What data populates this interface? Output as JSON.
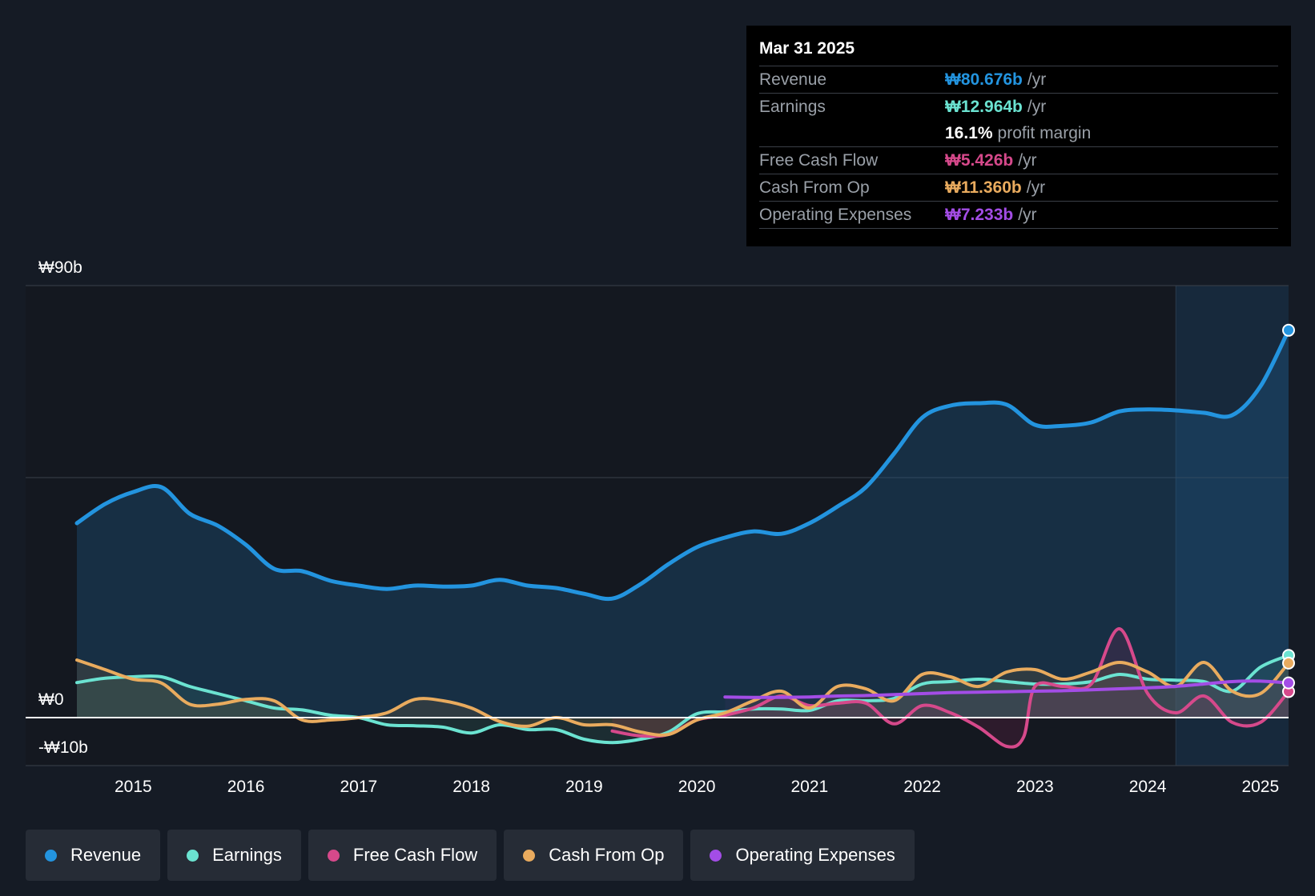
{
  "tooltip": {
    "date": "Mar 31 2025",
    "rows": [
      {
        "label": "Revenue",
        "value": "₩80.676b",
        "unit": "/yr",
        "color": "#2394df"
      },
      {
        "label": "Earnings",
        "value": "₩12.964b",
        "unit": "/yr",
        "color": "#6be3d1"
      },
      {
        "label": "",
        "value": "16.1%",
        "unit": "profit margin",
        "color": "#ffffff"
      },
      {
        "label": "Free Cash Flow",
        "value": "₩5.426b",
        "unit": "/yr",
        "color": "#d6498b"
      },
      {
        "label": "Cash From Op",
        "value": "₩11.360b",
        "unit": "/yr",
        "color": "#e9ab5e"
      },
      {
        "label": "Operating Expenses",
        "value": "₩7.233b",
        "unit": "/yr",
        "color": "#a34de6"
      }
    ]
  },
  "legend": [
    {
      "label": "Revenue",
      "color": "#2394df"
    },
    {
      "label": "Earnings",
      "color": "#6be3d1"
    },
    {
      "label": "Free Cash Flow",
      "color": "#d6498b"
    },
    {
      "label": "Cash From Op",
      "color": "#e9ab5e"
    },
    {
      "label": "Operating Expenses",
      "color": "#a34de6"
    }
  ],
  "chart_data": {
    "type": "area",
    "title": "",
    "xlabel": "",
    "ylabel": "",
    "currency": "₩",
    "ylim": [
      -10,
      90
    ],
    "xlim": [
      2014.5,
      2025.25
    ],
    "y_tick_labels": [
      {
        "value": 90,
        "label": "₩90b"
      },
      {
        "value": 0,
        "label": "₩0"
      },
      {
        "value": -10,
        "label": "-₩10b"
      }
    ],
    "gridlines": [
      90,
      50
    ],
    "x_tick_labels": [
      "2015",
      "2016",
      "2017",
      "2018",
      "2019",
      "2020",
      "2021",
      "2022",
      "2023",
      "2024",
      "2025"
    ],
    "x_tick_values": [
      2015,
      2016,
      2017,
      2018,
      2019,
      2020,
      2021,
      2022,
      2023,
      2024,
      2025
    ],
    "forecast_start": 2024.25,
    "series": [
      {
        "name": "Revenue",
        "color": "#2394df",
        "x": [
          2014.5,
          2014.75,
          2015,
          2015.25,
          2015.5,
          2015.75,
          2016,
          2016.25,
          2016.5,
          2016.75,
          2017,
          2017.25,
          2017.5,
          2017.75,
          2018,
          2018.25,
          2018.5,
          2018.75,
          2019,
          2019.25,
          2019.5,
          2019.75,
          2020,
          2020.25,
          2020.5,
          2020.75,
          2021,
          2021.25,
          2021.5,
          2021.75,
          2022,
          2022.25,
          2022.5,
          2022.75,
          2023,
          2023.25,
          2023.5,
          2023.75,
          2024,
          2024.25,
          2024.5,
          2024.75,
          2025,
          2025.25
        ],
        "values": [
          40.5,
          44.5,
          47,
          48,
          42.5,
          40,
          36,
          31,
          30.5,
          28.5,
          27.5,
          26.8,
          27.5,
          27.3,
          27.5,
          28.7,
          27.5,
          27,
          25.8,
          24.8,
          27.8,
          32,
          35.5,
          37.5,
          38.8,
          38.3,
          40.5,
          44,
          48,
          55,
          62.5,
          65,
          65.5,
          65.2,
          61,
          60.8,
          61.5,
          63.8,
          64.2,
          64,
          63.5,
          63,
          69,
          80.7
        ]
      },
      {
        "name": "Earnings",
        "color": "#6be3d1",
        "x": [
          2014.5,
          2014.75,
          2015,
          2015.25,
          2015.5,
          2015.75,
          2016,
          2016.25,
          2016.5,
          2016.75,
          2017,
          2017.25,
          2017.5,
          2017.75,
          2018,
          2018.25,
          2018.5,
          2018.75,
          2019,
          2019.25,
          2019.5,
          2019.75,
          2020,
          2020.25,
          2020.5,
          2020.75,
          2021,
          2021.25,
          2021.5,
          2021.75,
          2022,
          2022.25,
          2022.5,
          2022.75,
          2023,
          2023.25,
          2023.5,
          2023.75,
          2024,
          2024.25,
          2024.5,
          2024.75,
          2025,
          2025.25
        ],
        "values": [
          7.3,
          8.2,
          8.5,
          8.5,
          6.5,
          5,
          3.5,
          2,
          1.6,
          0.5,
          0,
          -1.5,
          -1.7,
          -2,
          -3.2,
          -1.5,
          -2.5,
          -2.5,
          -4.5,
          -5.2,
          -4.5,
          -3,
          0.8,
          1.2,
          1.8,
          1.8,
          1.5,
          3.5,
          3.5,
          4,
          7,
          7.5,
          8,
          7.5,
          7,
          7,
          7.5,
          9,
          8,
          7.8,
          7.5,
          5.5,
          10.5,
          12.96
        ]
      },
      {
        "name": "Free Cash Flow",
        "color": "#d6498b",
        "x": [
          2019.25,
          2019.5,
          2019.75,
          2020,
          2020.25,
          2020.5,
          2020.75,
          2021,
          2021.25,
          2021.5,
          2021.75,
          2022,
          2022.25,
          2022.5,
          2022.75,
          2022.9,
          2023,
          2023.25,
          2023.5,
          2023.75,
          2024,
          2024.25,
          2024.5,
          2024.75,
          2025,
          2025.25
        ],
        "values": [
          -2.8,
          -3.8,
          -3.5,
          -0.5,
          0.5,
          2,
          4.5,
          2.5,
          3,
          3,
          -1.3,
          2.5,
          1,
          -2,
          -6,
          -4,
          6.5,
          6.5,
          7,
          18.5,
          5,
          1,
          4.5,
          -1,
          -1,
          5.43
        ]
      },
      {
        "name": "Cash From Op",
        "color": "#e9ab5e",
        "x": [
          2014.5,
          2014.75,
          2015,
          2015.25,
          2015.5,
          2015.75,
          2016,
          2016.25,
          2016.5,
          2016.75,
          2017,
          2017.25,
          2017.5,
          2017.75,
          2018,
          2018.25,
          2018.5,
          2018.75,
          2019,
          2019.25,
          2019.5,
          2019.75,
          2020,
          2020.25,
          2020.5,
          2020.75,
          2021,
          2021.25,
          2021.5,
          2021.75,
          2022,
          2022.25,
          2022.5,
          2022.75,
          2023,
          2023.25,
          2023.5,
          2023.75,
          2024,
          2024.25,
          2024.5,
          2024.75,
          2025,
          2025.25
        ],
        "values": [
          12,
          10,
          8,
          7.2,
          2.8,
          2.8,
          3.8,
          3.5,
          -0.5,
          -0.5,
          0,
          1,
          3.8,
          3.5,
          2,
          -0.8,
          -1.8,
          0,
          -1.5,
          -1.5,
          -3,
          -3.5,
          -0.5,
          1,
          3.5,
          5.5,
          2,
          6.5,
          6,
          3.5,
          9,
          8.5,
          6.5,
          9.5,
          10,
          8,
          9.5,
          11.5,
          9.5,
          6.5,
          11.5,
          5.5,
          5,
          11.36
        ]
      },
      {
        "name": "Operating Expenses",
        "color": "#a34de6",
        "x": [
          2020.25,
          2020.5,
          2020.75,
          2021,
          2021.25,
          2021.5,
          2021.75,
          2022,
          2022.25,
          2022.5,
          2022.75,
          2023,
          2023.25,
          2023.5,
          2023.75,
          2024,
          2024.25,
          2024.5,
          2024.75,
          2025,
          2025.25
        ],
        "values": [
          4.3,
          4.2,
          4.2,
          4.3,
          4.5,
          4.6,
          4.8,
          5,
          5.2,
          5.3,
          5.4,
          5.5,
          5.6,
          5.8,
          6,
          6.2,
          6.5,
          7,
          7.5,
          7.6,
          7.23
        ]
      }
    ]
  }
}
